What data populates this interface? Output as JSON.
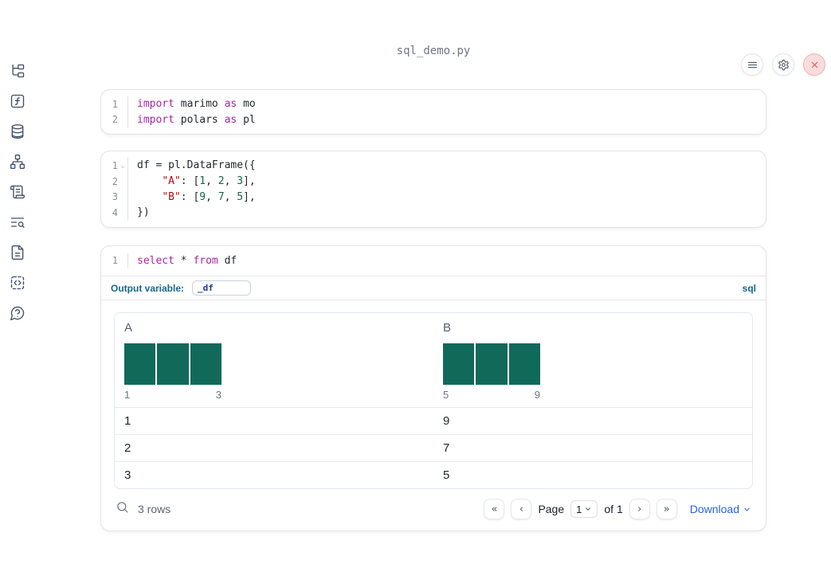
{
  "window": {
    "title": "sql_demo.py"
  },
  "topbar": {
    "buttons": [
      {
        "name": "menu"
      },
      {
        "name": "settings"
      },
      {
        "name": "close"
      }
    ]
  },
  "sidebar": {
    "items": [
      {
        "name": "file-explorer"
      },
      {
        "name": "variables"
      },
      {
        "name": "data-sources"
      },
      {
        "name": "dependencies"
      },
      {
        "name": "scratchpad"
      },
      {
        "name": "logs"
      },
      {
        "name": "documentation"
      },
      {
        "name": "snippets"
      },
      {
        "name": "help"
      }
    ]
  },
  "cells": {
    "imports": {
      "lines": [
        {
          "num": "1",
          "tokens": [
            [
              "kw",
              "import"
            ],
            [
              "txt",
              " marimo "
            ],
            [
              "kw",
              "as"
            ],
            [
              "txt",
              " mo"
            ]
          ]
        },
        {
          "num": "2",
          "tokens": [
            [
              "kw",
              "import"
            ],
            [
              "txt",
              " polars "
            ],
            [
              "kw",
              "as"
            ],
            [
              "txt",
              " pl"
            ]
          ]
        }
      ]
    },
    "dataframe": {
      "lines": [
        {
          "num": "1",
          "fold": true,
          "tokens": [
            [
              "txt",
              "df = pl.DataFrame({"
            ]
          ]
        },
        {
          "num": "2",
          "tokens": [
            [
              "txt",
              "    "
            ],
            [
              "str",
              "\"A\""
            ],
            [
              "txt",
              ": ["
            ],
            [
              "num",
              "1"
            ],
            [
              "txt",
              ", "
            ],
            [
              "num",
              "2"
            ],
            [
              "txt",
              ", "
            ],
            [
              "num",
              "3"
            ],
            [
              "txt",
              "],"
            ]
          ]
        },
        {
          "num": "3",
          "tokens": [
            [
              "txt",
              "    "
            ],
            [
              "str",
              "\"B\""
            ],
            [
              "txt",
              ": ["
            ],
            [
              "num",
              "9"
            ],
            [
              "txt",
              ", "
            ],
            [
              "num",
              "7"
            ],
            [
              "txt",
              ", "
            ],
            [
              "num",
              "5"
            ],
            [
              "txt",
              "],"
            ]
          ]
        },
        {
          "num": "4",
          "tokens": [
            [
              "txt",
              "})"
            ]
          ]
        }
      ]
    },
    "sql": {
      "lines": [
        {
          "num": "1",
          "tokens": [
            [
              "kw",
              "select"
            ],
            [
              "txt",
              " * "
            ],
            [
              "kw",
              "from"
            ],
            [
              "txt",
              " df"
            ]
          ]
        }
      ],
      "output_variable_label": "Output variable:",
      "output_variable_value": "_df",
      "language_badge": "sql"
    }
  },
  "table": {
    "columns": [
      {
        "name": "A",
        "hist": {
          "type": "bar",
          "bars": [
            1,
            1,
            1
          ],
          "min_label": "1",
          "max_label": "3"
        }
      },
      {
        "name": "B",
        "hist": {
          "type": "bar",
          "bars": [
            1,
            1,
            1
          ],
          "min_label": "5",
          "max_label": "9"
        }
      }
    ],
    "rows": [
      [
        "1",
        "9"
      ],
      [
        "2",
        "7"
      ],
      [
        "3",
        "5"
      ]
    ],
    "footer": {
      "row_count": "3 rows",
      "page_label": "Page",
      "page_value": "1",
      "of_label": "of 1",
      "download_label": "Download"
    }
  },
  "colors": {
    "histogram_bar": "#11695a",
    "keyword": "#a626a4",
    "string": "#aa1111",
    "number": "#116644",
    "sql_accent": "#12688e",
    "link_blue": "#2563eb",
    "close_red": "#d25f5f"
  }
}
